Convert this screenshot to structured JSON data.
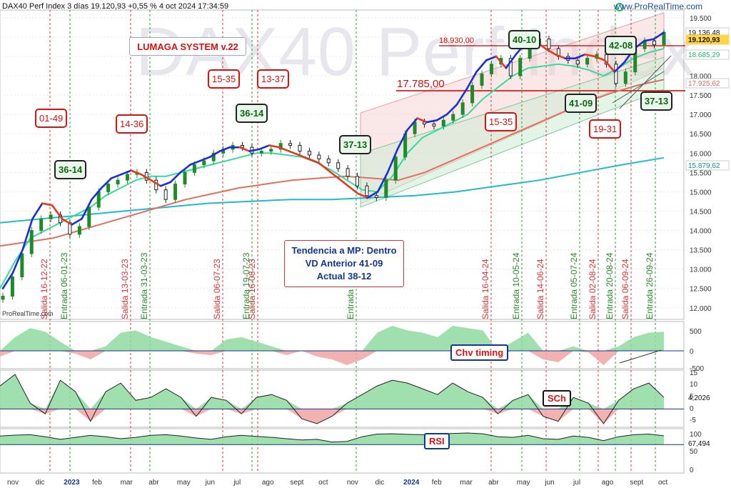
{
  "header": {
    "title": "DAX40 Perf Index 3 días 19.120,93 +0,55 % 4 oct 2024 17:34:59",
    "site": "www.ProRealTime.com",
    "watermark": "DAX40 Perf Index",
    "platform": "ProRealTime.com"
  },
  "title_box": "LUMAGA SYSTEM v.22",
  "trend_box": {
    "line1": "Tendencia a MP: Dentro",
    "line2": "VD Anterior 41-09",
    "line3": "Actual 38-12"
  },
  "colors": {
    "price_up": "#1e8a2a",
    "price_down": "#222222",
    "ma_fast_up": "#1c2fd6",
    "ma_fast_down": "#e23b20",
    "ma_mid": "#33dd99",
    "ma_slow": "#e07060",
    "ma_long": "#22bbcc",
    "exit_line": "#e03030",
    "entry_line": "#2aa02a",
    "hline": "#cc0000",
    "osc_pos": "#8fd9a0",
    "osc_neg": "#f1a5a5",
    "axis_blue": "#12378f"
  },
  "chart_data": [
    {
      "type": "line",
      "panel": "price",
      "ylim": [
        11700,
        19700
      ],
      "y_ticks": [
        "19.500",
        "19.000",
        "18.500",
        "18.000",
        "17.500",
        "17.000",
        "16.500",
        "16.000",
        "15.500",
        "15.000",
        "14.500",
        "14.000",
        "13.500",
        "13.000",
        "12.500",
        "12.000"
      ],
      "x_month_labels": [
        "nov",
        "dic",
        "2023",
        "feb",
        "mar",
        "abr",
        "may",
        "jun",
        "jul",
        "ago",
        "sept",
        "oct",
        "nov",
        "dic",
        "2024",
        "feb",
        "mar",
        "abr",
        "may",
        "jun",
        "jul",
        "ago",
        "sept",
        "oct"
      ],
      "series": [
        {
          "name": "price",
          "values": [
            12300,
            12800,
            13400,
            14000,
            14300,
            14400,
            14200,
            13900,
            14100,
            14600,
            15000,
            15200,
            15300,
            15450,
            15500,
            15300,
            15050,
            14800,
            15200,
            15500,
            15700,
            15800,
            16000,
            16100,
            16200,
            16150,
            16000,
            16050,
            16100,
            16250,
            16200,
            16050,
            15950,
            15850,
            15750,
            15600,
            15400,
            15150,
            14900,
            14850,
            15300,
            15900,
            16500,
            16800,
            16750,
            16700,
            16850,
            17000,
            17300,
            17750,
            18050,
            18300,
            18450,
            18000,
            18450,
            18800,
            18950,
            18700,
            18500,
            18400,
            18300,
            18450,
            18550,
            18300,
            17800,
            18100,
            18700,
            18900,
            18800,
            19120
          ]
        },
        {
          "name": "fast",
          "values": [
            12500,
            12900,
            13500,
            14300,
            14700,
            14650,
            14300,
            14150,
            14300,
            14800,
            15100,
            15350,
            15450,
            15550,
            15450,
            15300,
            15150,
            15250,
            15500,
            15700,
            15800,
            15900,
            16050,
            16150,
            16150,
            16050,
            16100,
            16200,
            16150,
            16050,
            15950,
            15850,
            15750,
            15550,
            15350,
            15150,
            14950,
            14850,
            15000,
            15500,
            16100,
            16600,
            16900,
            16800,
            16850,
            17000,
            17250,
            17650,
            18100,
            18400,
            18500,
            18200,
            18550,
            18850,
            18900,
            18700,
            18550,
            18450,
            18450,
            18550,
            18500,
            18400,
            18100,
            18350,
            18700,
            18900,
            18950,
            19120
          ]
        },
        {
          "name": "mid",
          "values": [
            12500,
            13200,
            13800,
            14000,
            14200,
            14400,
            14600,
            14900,
            15100,
            15300,
            15400,
            15400,
            15500,
            15600,
            15700,
            15800,
            15900,
            16000,
            16000,
            15950,
            15900,
            15750,
            15550,
            15300,
            15050,
            15000,
            15400,
            16000,
            16400,
            16600,
            16800,
            17000,
            17400,
            17700,
            18000,
            18200,
            18250,
            18300,
            18250,
            18150,
            18000,
            18200,
            18450,
            18600,
            18700
          ]
        },
        {
          "name": "slow",
          "values": [
            13600,
            13700,
            13800,
            14000,
            14200,
            14400,
            14600,
            14800,
            14950,
            15100,
            15200,
            15300,
            15350,
            15400,
            15350,
            15300,
            15500,
            15800,
            16100,
            16400,
            16700,
            17000,
            17300,
            17550,
            17750,
            17900
          ]
        },
        {
          "name": "long",
          "values": [
            14200,
            14300,
            14400,
            14500,
            14600,
            14700,
            14750,
            14800,
            14800,
            14850,
            14900,
            15000,
            15150,
            15300,
            15500,
            15700,
            15880
          ]
        }
      ],
      "axis_labels": {
        "hline_1": "18.930,00",
        "hline_2": "17.785,00",
        "right_1": "19.136,48",
        "right_price": "19.120,93",
        "right_mid": "18.685,29",
        "right_slow": "17.925,62",
        "right_long": "15.879,62"
      },
      "annotations": {
        "exits": [
          "Salida 16-12-22",
          "Salida 13-03-23",
          "Salida 06-07-23",
          "Salida 16-08-23",
          "Salida 16-04-24",
          "Salida 14-06-24",
          "Salida 02-08-24",
          "Salida 06-09-24"
        ],
        "entries": [
          "Entrada 06-01-23",
          "Entrada 31-03-23",
          "Entrada 19-07-23",
          "Entrada 08-11-23",
          "Entrada 10-05-24",
          "Entrada 05-07-24",
          "Entrada 20-08-24",
          "Entrada 26-09-24"
        ],
        "red_boxes": [
          "01-49",
          "14-36",
          "15-35",
          "13-37",
          "15-35",
          "19-31"
        ],
        "green_boxes": [
          "36-14",
          "36-14",
          "37-13",
          "40-10",
          "41-09",
          "42-08",
          "37-13"
        ]
      }
    },
    {
      "type": "area",
      "panel": "indicator-1",
      "title": "Chv timing",
      "y_ticks": [
        "500",
        "0",
        "-500"
      ],
      "values": [
        -200,
        300,
        500,
        420,
        200,
        -100,
        -300,
        100,
        400,
        450,
        300,
        200,
        100,
        -100,
        -150,
        250,
        300,
        200,
        100,
        -150,
        0,
        -200,
        -300,
        -500,
        -300,
        400,
        550,
        450,
        400,
        300,
        550,
        500,
        450,
        -100,
        200,
        400,
        -300,
        -400,
        100,
        -50,
        -500,
        100,
        300,
        400,
        420
      ]
    },
    {
      "type": "area",
      "panel": "indicator-2",
      "title": "SCh",
      "y_ticks": [
        "15",
        "10",
        "5",
        "0",
        "-5"
      ],
      "right_label": "4,2026",
      "values": [
        8,
        12,
        2,
        -2,
        10,
        6,
        -5,
        6,
        9,
        3,
        4,
        7,
        4,
        -3,
        4,
        3,
        -2,
        4,
        5,
        3,
        -4,
        -6,
        -3,
        2,
        5,
        8,
        10,
        9,
        7,
        5,
        9,
        6,
        4,
        -2,
        3,
        5,
        -3,
        -5,
        4,
        2,
        -6,
        3,
        7,
        9,
        4
      ]
    },
    {
      "type": "area",
      "panel": "indicator-3",
      "title": "RSI",
      "y_ticks": [
        "100",
        "50",
        "0"
      ],
      "right_label": "67,494",
      "values": [
        65,
        72,
        75,
        60,
        40,
        55,
        70,
        60,
        45,
        55,
        70,
        75,
        65,
        50,
        40,
        60,
        70,
        62,
        55,
        45,
        35,
        40,
        20,
        25,
        60,
        80,
        82,
        78,
        75,
        80,
        85,
        88,
        82,
        60,
        55,
        70,
        45,
        40,
        65,
        55,
        30,
        60,
        75,
        80,
        67
      ]
    }
  ]
}
